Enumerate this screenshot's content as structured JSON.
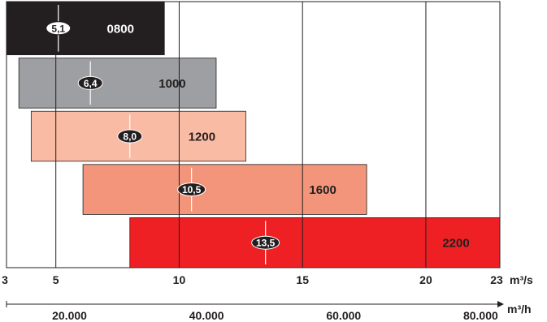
{
  "chart_data": {
    "type": "bar",
    "subtype": "floating-range",
    "x_axis_primary": {
      "unit": "m³/s",
      "ticks": [
        3,
        5,
        10,
        15,
        20,
        23
      ],
      "range": [
        3,
        23
      ],
      "gridlines": [
        5,
        10,
        15,
        20
      ]
    },
    "x_axis_secondary": {
      "unit": "m³/h",
      "ticks": [
        {
          "value": 20000,
          "label": "20.000"
        },
        {
          "value": 40000,
          "label": "40.000"
        },
        {
          "value": 60000,
          "label": "60.000"
        },
        {
          "value": 80000,
          "label": "80.000"
        }
      ]
    },
    "bars": [
      {
        "name": "0800",
        "start": 3.0,
        "end": 9.4,
        "marker": 5.1,
        "marker_label": "5,1",
        "color": "#231f20",
        "badge_style": "light",
        "name_color": "#ffffff"
      },
      {
        "name": "1000",
        "start": 3.5,
        "end": 11.5,
        "marker": 6.4,
        "marker_label": "6,4",
        "color": "#9d9fa2",
        "badge_style": "dark",
        "name_color": "#231f20"
      },
      {
        "name": "1200",
        "start": 4.0,
        "end": 12.7,
        "marker": 8.0,
        "marker_label": "8,0",
        "color": "#f9bba3",
        "badge_style": "dark",
        "name_color": "#231f20"
      },
      {
        "name": "1600",
        "start": 6.1,
        "end": 17.6,
        "marker": 10.5,
        "marker_label": "10,5",
        "color": "#f3957a",
        "badge_style": "dark",
        "name_color": "#231f20"
      },
      {
        "name": "2200",
        "start": 8.0,
        "end": 23.0,
        "marker": 13.5,
        "marker_label": "13,5",
        "color": "#ee2024",
        "badge_style": "dark",
        "name_color": "#231f20"
      }
    ],
    "grid": true
  }
}
